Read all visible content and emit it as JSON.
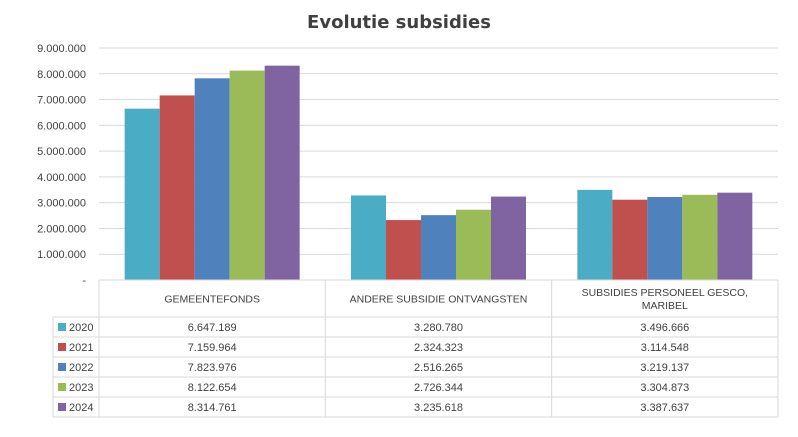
{
  "chart_data": {
    "type": "bar",
    "title": "Evolutie subsidies",
    "categories": [
      "GEMEENTEFONDS",
      "ANDERE SUBSIDIE ONTVANGSTEN",
      "SUBSIDIES PERSONEEL GESCO, MARIBEL"
    ],
    "series": [
      {
        "name": "2020",
        "color": "#4BACC6",
        "values": [
          6647189,
          3280780,
          3496666
        ],
        "labels": [
          "6.647.189",
          "3.280.780",
          "3.496.666"
        ]
      },
      {
        "name": "2021",
        "color": "#C0504D",
        "values": [
          7159964,
          2324323,
          3114548
        ],
        "labels": [
          "7.159.964",
          "2.324.323",
          "3.114.548"
        ]
      },
      {
        "name": "2022",
        "color": "#4F81BD",
        "values": [
          7823976,
          2516265,
          3219137
        ],
        "labels": [
          "7.823.976",
          "2.516.265",
          "3.219.137"
        ]
      },
      {
        "name": "2023",
        "color": "#9BBB59",
        "values": [
          8122654,
          2726344,
          3304873
        ],
        "labels": [
          "8.122.654",
          "2.726.344",
          "3.304.873"
        ]
      },
      {
        "name": "2024",
        "color": "#8064A2",
        "values": [
          8314761,
          3235618,
          3387637
        ],
        "labels": [
          "8.314.761",
          "3.235.618",
          "3.387.637"
        ]
      }
    ],
    "ylim": [
      0,
      9000000
    ],
    "y_ticks": [
      0,
      1000000,
      2000000,
      3000000,
      4000000,
      5000000,
      6000000,
      7000000,
      8000000,
      9000000
    ],
    "y_tick_labels": [
      "-",
      "1.000.000",
      "2.000.000",
      "3.000.000",
      "4.000.000",
      "5.000.000",
      "6.000.000",
      "7.000.000",
      "8.000.000",
      "9.000.000"
    ],
    "grid": true,
    "legend": "data-table"
  }
}
